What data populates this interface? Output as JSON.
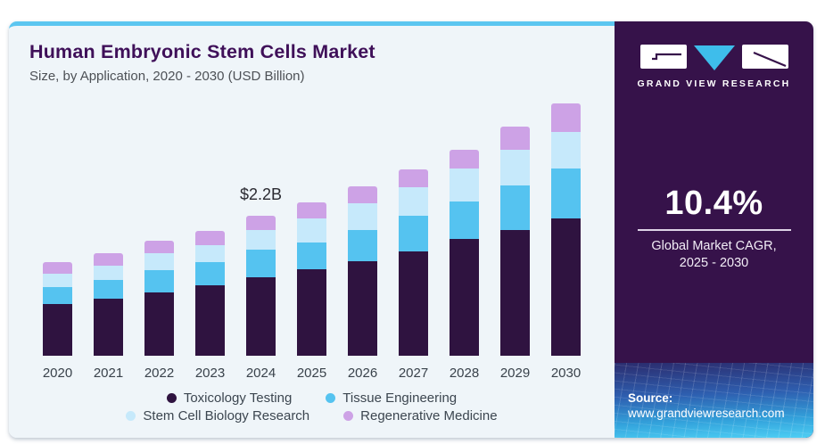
{
  "header": {
    "title": "Human Embryonic Stem Cells Market",
    "subtitle": "Size, by Application, 2020 - 2030 (USD Billion)"
  },
  "chart_data": {
    "type": "bar",
    "stacked": true,
    "title": "Human Embryonic Stem Cells Market",
    "subtitle": "Size, by Application, 2020 - 2030 (USD Billion)",
    "unit": "USD Billion",
    "categories": [
      "2020",
      "2021",
      "2022",
      "2023",
      "2024",
      "2025",
      "2026",
      "2027",
      "2028",
      "2029",
      "2030"
    ],
    "series": [
      {
        "name": "Toxicology Testing",
        "color": "#2F1340",
        "values": [
          0.81,
          0.9,
          1.0,
          1.11,
          1.24,
          1.36,
          1.49,
          1.65,
          1.84,
          1.98,
          2.17
        ]
      },
      {
        "name": "Tissue Engineering",
        "color": "#55C3F0",
        "values": [
          0.27,
          0.3,
          0.35,
          0.36,
          0.43,
          0.43,
          0.49,
          0.55,
          0.59,
          0.7,
          0.78
        ]
      },
      {
        "name": "Stem Cell Biology Research",
        "color": "#C6E9FB",
        "values": [
          0.21,
          0.22,
          0.26,
          0.28,
          0.31,
          0.38,
          0.42,
          0.45,
          0.52,
          0.56,
          0.58
        ]
      },
      {
        "name": "Regenerative Medicine",
        "color": "#CDA2E6",
        "values": [
          0.18,
          0.2,
          0.2,
          0.22,
          0.22,
          0.25,
          0.27,
          0.28,
          0.3,
          0.37,
          0.44
        ]
      }
    ],
    "totals": [
      1.47,
      1.62,
      1.81,
      1.97,
      2.2,
      2.42,
      2.67,
      2.93,
      3.25,
      3.61,
      3.97
    ],
    "annotation": {
      "category": "2024",
      "text": "$2.2B"
    },
    "xlabel": "",
    "ylabel": "",
    "ylim": [
      0,
      4.2
    ],
    "gridlines": false,
    "y_axis_shown": false,
    "legend_position": "bottom"
  },
  "sidebar": {
    "logo_text": "GRAND VIEW RESEARCH",
    "cagr_value": "10.4%",
    "cagr_label_line1": "Global Market CAGR,",
    "cagr_label_line2": "2025 - 2030",
    "source_label": "Source:",
    "source_url": "www.grandviewresearch.com"
  },
  "theme": {
    "panel_bg": "#EFF5F9",
    "top_border": "#5CC6F0",
    "sidebar_bg": "#36124A",
    "title_color": "#3F1059",
    "logo_triangle": "#3EBDEB",
    "source_gradient": [
      "#2B2C6E",
      "#2E5FB0",
      "#33A3DC",
      "#4ECFF4"
    ]
  }
}
